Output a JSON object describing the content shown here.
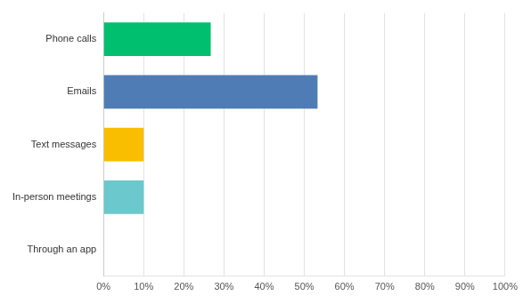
{
  "chart_data": {
    "type": "bar",
    "orientation": "horizontal",
    "categories": [
      "Phone calls",
      "Emails",
      "Text messages",
      "In-person meetings",
      "Through an app"
    ],
    "values": [
      26.7,
      53.3,
      10,
      10,
      0
    ],
    "colors": [
      "#00bf6f",
      "#507cb6",
      "#f9be00",
      "#6bc8cd",
      "#ff8b4f"
    ],
    "xlim": [
      0,
      100
    ],
    "xticks": [
      {
        "value": 0,
        "label": "0%"
      },
      {
        "value": 10,
        "label": "10%"
      },
      {
        "value": 20,
        "label": "20%"
      },
      {
        "value": 30,
        "label": "30%"
      },
      {
        "value": 40,
        "label": "40%"
      },
      {
        "value": 50,
        "label": "50%"
      },
      {
        "value": 60,
        "label": "60%"
      },
      {
        "value": 70,
        "label": "70%"
      },
      {
        "value": 80,
        "label": "80%"
      },
      {
        "value": 90,
        "label": "90%"
      },
      {
        "value": 100,
        "label": "100%"
      }
    ],
    "grid": true
  }
}
